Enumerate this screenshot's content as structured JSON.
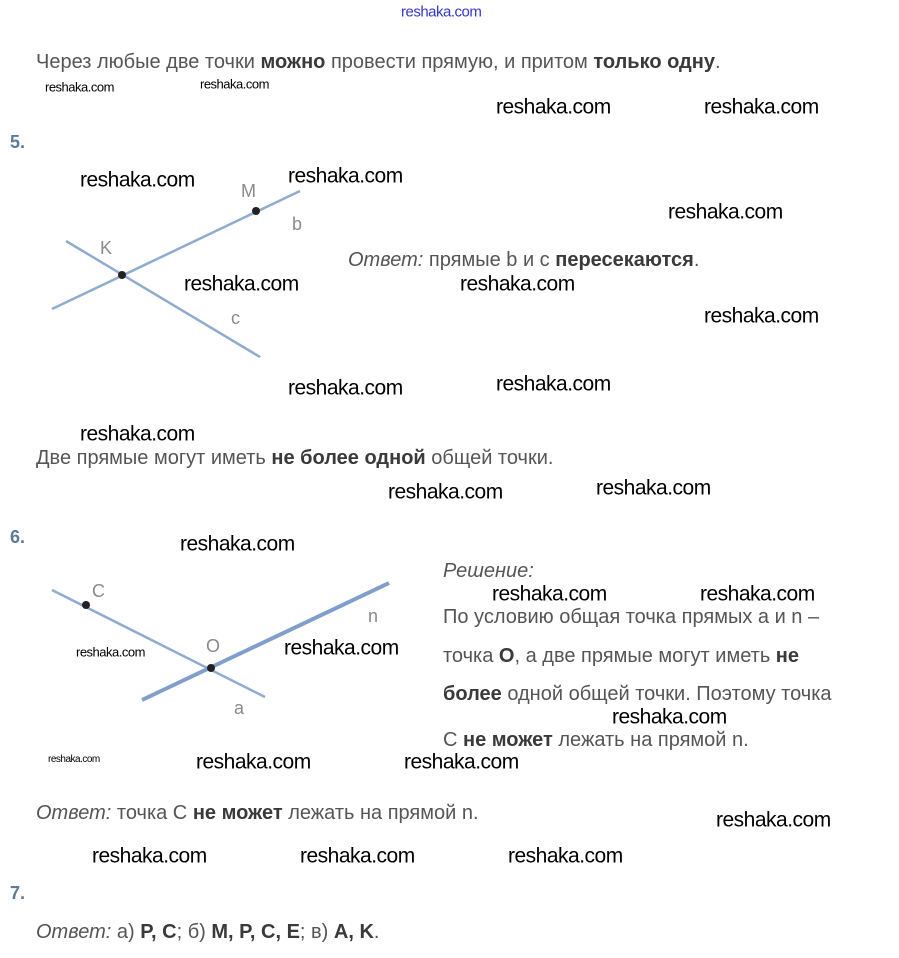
{
  "watermark_top": "reshaka.com",
  "watermark": "reshaka.com",
  "line1": [
    {
      "t": "Через любые две точки "
    },
    {
      "t": "можно",
      "b": true
    },
    {
      "t": " провести прямую, и притом "
    },
    {
      "t": "только одну",
      "b": true
    },
    {
      "t": "."
    }
  ],
  "task5": {
    "number": "5.",
    "labels": {
      "K": "K",
      "M": "M",
      "b": "b",
      "c": "c"
    },
    "answer": [
      {
        "t": "Ответ:",
        "i": true
      },
      {
        "t": " прямые b и c "
      },
      {
        "t": "пересекаются",
        "b": true
      },
      {
        "t": "."
      }
    ],
    "note": [
      {
        "t": "Две прямые могут иметь "
      },
      {
        "t": "не более одной",
        "b": true
      },
      {
        "t": " общей точки."
      }
    ]
  },
  "task6": {
    "number": "6.",
    "labels": {
      "C": "C",
      "O": "O",
      "n": "n",
      "a": "a"
    },
    "solution_title": "Решение:",
    "solution_lines": [
      [
        {
          "t": "По условию общая точка прямых a и n –"
        }
      ],
      [
        {
          "t": "точка "
        },
        {
          "t": "О",
          "b": true
        },
        {
          "t": ", а две прямые могут иметь "
        },
        {
          "t": "не",
          "b": true
        }
      ],
      [
        {
          "t": "более",
          "b": true
        },
        {
          "t": " одной общей точки. Поэтому точка"
        }
      ],
      [
        {
          "t": "С "
        },
        {
          "t": "не может",
          "b": true
        },
        {
          "t": " лежать на прямой n."
        }
      ]
    ],
    "answer": [
      {
        "t": "Ответ:",
        "i": true
      },
      {
        "t": " точка С "
      },
      {
        "t": "не может",
        "b": true
      },
      {
        "t": " лежать на прямой n."
      }
    ]
  },
  "task7": {
    "number": "7.",
    "answer": [
      {
        "t": "Ответ:",
        "i": true
      },
      {
        "t": " а) "
      },
      {
        "t": "P, C",
        "b": true
      },
      {
        "t": "; б) "
      },
      {
        "t": "M, P, C, E",
        "b": true
      },
      {
        "t": "; в) "
      },
      {
        "t": "A, K",
        "b": true
      },
      {
        "t": "."
      }
    ]
  },
  "colors": {
    "line": "#8fabd0",
    "text": "#555555",
    "number": "#5b7b98",
    "watermark_top": "#3336cc"
  }
}
